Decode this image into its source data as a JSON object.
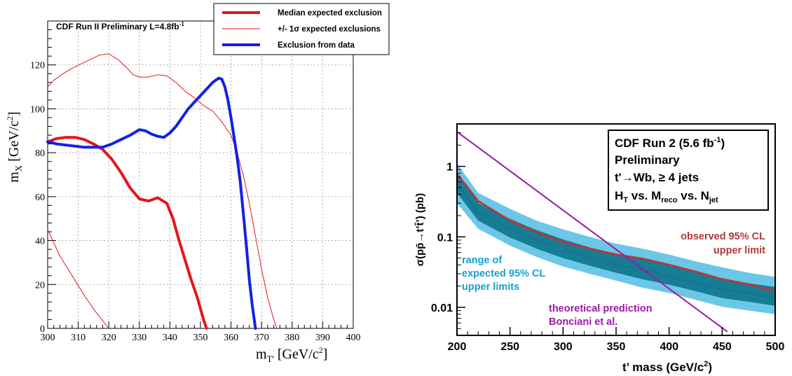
{
  "chart_data": [
    {
      "type": "line",
      "title": "CDF Run II Preliminary L=4.8fb",
      "title_sup": "-1",
      "xlabel": "m",
      "xlabel_sub": "T'",
      "xlabel_unit": "[GeV/c",
      "xlabel_unit_sup": "2",
      "xlabel_unit_end": "]",
      "ylabel": "m",
      "ylabel_sub": "X",
      "ylabel_unit": "[GeV/c",
      "ylabel_unit_sup": "2",
      "ylabel_unit_end": "]",
      "xlim": [
        300,
        400
      ],
      "ylim": [
        0,
        140
      ],
      "x_ticks": [
        "300",
        "310",
        "320",
        "330",
        "340",
        "350",
        "360",
        "370",
        "380",
        "390",
        "400"
      ],
      "y_ticks": [
        "0",
        "20",
        "40",
        "60",
        "80",
        "100",
        "120"
      ],
      "grid": true,
      "legend_position": "top-right",
      "colors": {
        "median": "#e8141a",
        "band": "#e8141a",
        "data": "#1420e6"
      },
      "series": [
        {
          "name": "Median expected exclusion",
          "x": [
            300,
            303,
            306,
            309,
            312,
            315,
            318,
            321,
            324,
            327,
            330,
            333,
            336,
            339,
            341,
            343,
            345,
            347,
            349,
            350,
            351,
            352
          ],
          "y": [
            85,
            86.5,
            87,
            87,
            86,
            84,
            81.5,
            77,
            71,
            64,
            59,
            58,
            59.5,
            57,
            50,
            40,
            31,
            22,
            14,
            9,
            4,
            0
          ]
        },
        {
          "name": "+/- 1σ expected exclusions",
          "x": [
            300,
            302,
            305,
            308,
            311,
            314,
            317,
            320,
            323,
            326,
            328,
            330,
            333,
            336,
            339,
            342,
            345,
            348,
            351,
            354,
            357,
            360,
            362,
            364,
            366,
            368,
            370,
            372,
            374,
            375
          ],
          "y": [
            110,
            113,
            116,
            118.5,
            120.5,
            122.5,
            124.5,
            125,
            122.5,
            118.5,
            115.5,
            114.5,
            114.5,
            115.5,
            115,
            112,
            108,
            105,
            101.5,
            99,
            94,
            88,
            80,
            70,
            57,
            42,
            27,
            14,
            4,
            0
          ]
        },
        {
          "name": "+/- 1σ expected exclusions (lower)",
          "x": [
            300,
            304,
            308,
            312,
            316,
            320
          ],
          "y": [
            45,
            33,
            24,
            15,
            7,
            0
          ]
        },
        {
          "name": "Exclusion from data",
          "x": [
            300,
            303,
            306,
            309,
            312,
            315,
            318,
            321,
            324,
            327,
            330,
            332,
            334,
            336,
            338,
            340,
            342,
            344,
            346,
            348,
            350,
            352,
            354,
            356,
            357,
            358,
            359,
            360,
            361,
            362,
            363,
            364,
            365,
            366,
            367,
            368
          ],
          "y": [
            85,
            84,
            83.5,
            83,
            82.5,
            82.5,
            82.5,
            84,
            86,
            88,
            90.5,
            90,
            88.5,
            87.5,
            87,
            89,
            92,
            96,
            100,
            103,
            106,
            109,
            112,
            114,
            113.5,
            110,
            104,
            96,
            87,
            78,
            67,
            53,
            38,
            22,
            10,
            0
          ]
        }
      ],
      "legend": [
        "Median expected exclusion",
        "+/- 1σ expected exclusions",
        "Exclusion from data"
      ]
    },
    {
      "type": "line",
      "xlabel": "t’ mass (GeV/c",
      "xlabel_sup": "2",
      "xlabel_end": ")",
      "ylabel": "σ(pp̄→t’t̄’)  (pb)",
      "xlim": [
        200,
        500
      ],
      "ylim": [
        0.004,
        4
      ],
      "yscale": "log",
      "x_ticks": [
        "200",
        "250",
        "300",
        "350",
        "400",
        "450",
        "500"
      ],
      "y_ticks": [
        "0.01",
        "0.1",
        "1"
      ],
      "grid": false,
      "colors": {
        "observed": "#b23a3a",
        "expected": "#1d6e86",
        "band1": "#157d96",
        "band2": "#6cc7e6",
        "theory": "#9a1aa6"
      },
      "infobox": {
        "line1": "CDF Run 2 (5.6 fb",
        "line1_sup": "-1",
        "line1_end": ")",
        "line2": "Preliminary",
        "line3": "t'→Wb, ≥ 4 jets",
        "line4_a": "H",
        "line4_a_sub": "T",
        "line4_b": " vs. M",
        "line4_b_sub": "reco",
        "line4_c": " vs. N",
        "line4_c_sub": "jet"
      },
      "annotations": {
        "observed_1": "observed 95% CL",
        "observed_2": "upper limit",
        "range_1": "range of",
        "range_2": "expected 95% CL",
        "range_3": "upper limits",
        "theory_1": "theoretical prediction",
        "theory_2": "Bonciani et al."
      },
      "x": [
        200,
        220,
        250,
        275,
        300,
        325,
        350,
        375,
        400,
        425,
        450,
        475,
        500
      ],
      "series": [
        {
          "name": "observed 95% CL upper limit",
          "y": [
            0.78,
            0.32,
            0.17,
            0.115,
            0.085,
            0.068,
            0.056,
            0.049,
            0.04,
            0.032,
            0.025,
            0.021,
            0.017
          ]
        },
        {
          "name": "expected",
          "y": [
            0.58,
            0.22,
            0.13,
            0.09,
            0.066,
            0.051,
            0.041,
            0.034,
            0.028,
            0.022,
            0.018,
            0.016,
            0.014
          ]
        },
        {
          "name": "band_1s_low",
          "y": [
            0.42,
            0.17,
            0.098,
            0.068,
            0.05,
            0.039,
            0.031,
            0.025,
            0.021,
            0.017,
            0.0135,
            0.012,
            0.0105
          ]
        },
        {
          "name": "band_1s_high",
          "y": [
            0.82,
            0.3,
            0.18,
            0.125,
            0.092,
            0.071,
            0.057,
            0.048,
            0.039,
            0.031,
            0.026,
            0.022,
            0.0195
          ]
        },
        {
          "name": "band_2s_low",
          "y": [
            0.3,
            0.13,
            0.075,
            0.052,
            0.038,
            0.03,
            0.024,
            0.019,
            0.016,
            0.0128,
            0.0102,
            0.009,
            0.008
          ]
        },
        {
          "name": "band_2s_high",
          "y": [
            1.1,
            0.42,
            0.25,
            0.17,
            0.128,
            0.1,
            0.08,
            0.068,
            0.056,
            0.045,
            0.037,
            0.031,
            0.027
          ]
        }
      ],
      "theory": {
        "name": "theoretical prediction",
        "x": [
          200,
          455
        ],
        "y": [
          3.1,
          0.0045
        ]
      }
    }
  ]
}
